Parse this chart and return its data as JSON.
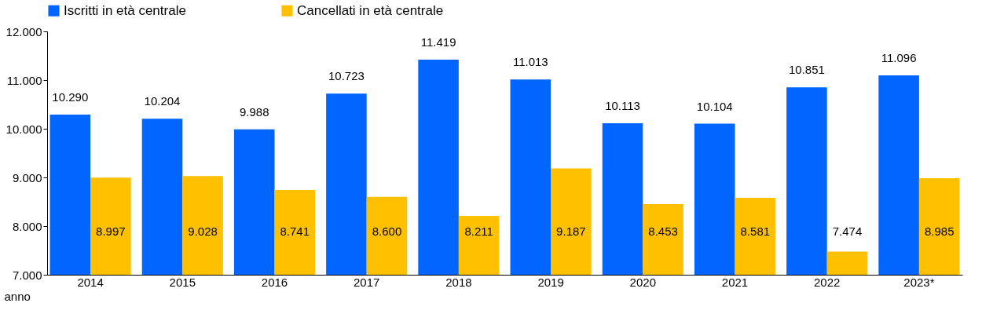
{
  "chart_data": {
    "type": "bar",
    "xlabel": "anno",
    "categories": [
      "2014",
      "2015",
      "2016",
      "2017",
      "2018",
      "2019",
      "2020",
      "2021",
      "2022",
      "2023*"
    ],
    "series": [
      {
        "name": "Iscritti in età centrale",
        "color": "#0066ff",
        "values": [
          10290,
          10204,
          9988,
          10723,
          11419,
          11013,
          10113,
          10104,
          10851,
          11096
        ],
        "value_labels": [
          "10.290",
          "10.204",
          "9.988",
          "10.723",
          "11.419",
          "11.013",
          "10.113",
          "10.104",
          "10.851",
          "11.096"
        ]
      },
      {
        "name": "Cancellati in età centrale",
        "color": "#ffc000",
        "values": [
          8997,
          9028,
          8741,
          8600,
          8211,
          9187,
          8453,
          8581,
          7474,
          8985
        ],
        "value_labels": [
          "8.997",
          "9.028",
          "8.741",
          "8.600",
          "8.211",
          "9.187",
          "8.453",
          "8.581",
          "7.474",
          "8.985"
        ]
      }
    ],
    "ylim": [
      7000,
      12000
    ],
    "yticks": [
      {
        "value": 7000,
        "label": "7.000"
      },
      {
        "value": 8000,
        "label": "8.000"
      },
      {
        "value": 9000,
        "label": "9.000"
      },
      {
        "value": 10000,
        "label": "10.000"
      },
      {
        "value": 11000,
        "label": "11.000"
      },
      {
        "value": 12000,
        "label": "12.000"
      }
    ],
    "grid": false,
    "legend": "top"
  }
}
